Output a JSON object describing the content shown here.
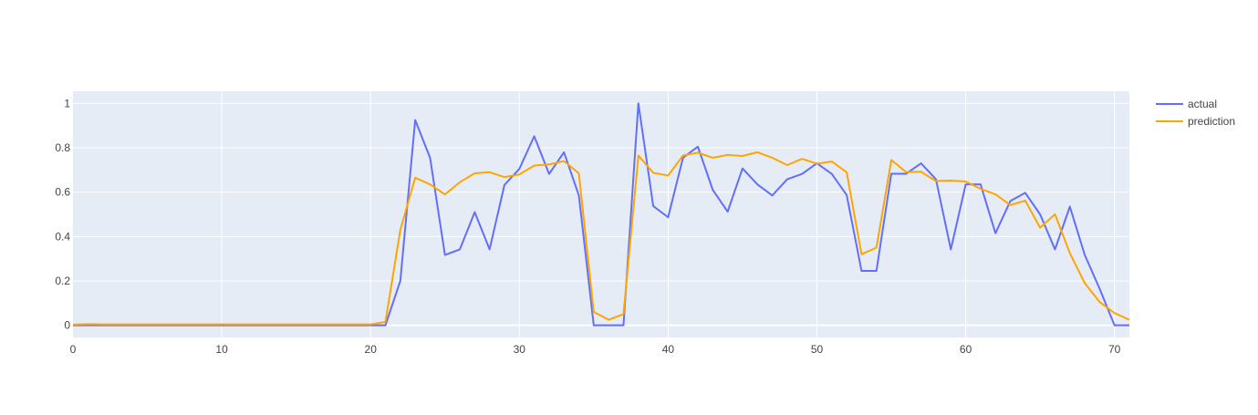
{
  "chart_data": {
    "type": "line",
    "title": "",
    "xlabel": "",
    "ylabel": "",
    "xlim": [
      0,
      71
    ],
    "ylim": [
      -0.055,
      1.055
    ],
    "x_ticks": [
      0,
      10,
      20,
      30,
      40,
      50,
      60,
      70
    ],
    "y_ticks": [
      0,
      0.2,
      0.4,
      0.6,
      0.8,
      1
    ],
    "x_tick_labels": [
      "0",
      "10",
      "20",
      "30",
      "40",
      "50",
      "60",
      "70"
    ],
    "y_tick_labels": [
      "0",
      "0.2",
      "0.4",
      "0.6",
      "0.8",
      "1"
    ],
    "grid": true,
    "legend_position": "top-right",
    "series": [
      {
        "name": "actual",
        "color": "#636efa",
        "values": [
          0,
          0,
          0,
          0,
          0,
          0,
          0,
          0,
          0,
          0,
          0,
          0,
          0,
          0,
          0,
          0,
          0,
          0,
          0,
          0,
          0,
          0,
          0.2,
          0.925,
          0.755,
          0.317,
          0.342,
          0.51,
          0.342,
          0.633,
          0.705,
          0.852,
          0.682,
          0.78,
          0.585,
          0,
          0,
          0,
          1,
          0.537,
          0.487,
          0.755,
          0.805,
          0.61,
          0.512,
          0.707,
          0.635,
          0.585,
          0.658,
          0.682,
          0.73,
          0.682,
          0.587,
          0.245,
          0.245,
          0.683,
          0.683,
          0.73,
          0.658,
          0.342,
          0.635,
          0.635,
          0.415,
          0.56,
          0.597,
          0.5,
          0.342,
          0.535,
          0.317,
          0.165,
          0,
          0
        ]
      },
      {
        "name": "prediction",
        "color": "#ffa500",
        "values": [
          0.003,
          0.005,
          0.004,
          0.004,
          0.004,
          0.004,
          0.004,
          0.004,
          0.004,
          0.004,
          0.004,
          0.004,
          0.004,
          0.004,
          0.004,
          0.004,
          0.004,
          0.004,
          0.004,
          0.004,
          0.004,
          0.015,
          0.43,
          0.665,
          0.635,
          0.59,
          0.645,
          0.685,
          0.69,
          0.668,
          0.68,
          0.72,
          0.725,
          0.74,
          0.685,
          0.06,
          0.025,
          0.05,
          0.765,
          0.687,
          0.675,
          0.765,
          0.778,
          0.755,
          0.768,
          0.763,
          0.78,
          0.755,
          0.722,
          0.75,
          0.728,
          0.738,
          0.69,
          0.32,
          0.35,
          0.745,
          0.69,
          0.692,
          0.65,
          0.652,
          0.648,
          0.615,
          0.59,
          0.542,
          0.562,
          0.44,
          0.5,
          0.325,
          0.19,
          0.105,
          0.055,
          0.025
        ]
      }
    ]
  }
}
